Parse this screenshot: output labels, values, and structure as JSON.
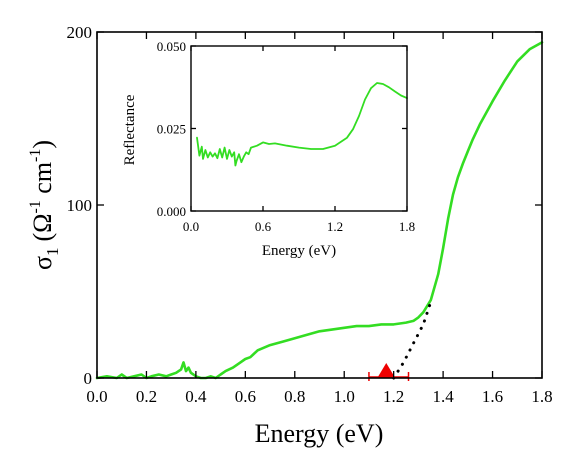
{
  "chart_data": [
    {
      "type": "line",
      "title": "",
      "xlabel": "Energy (eV)",
      "ylabel": {
        "main": "σ",
        "sub": "1",
        "unit": "(Ω",
        "exp1": "-1",
        "unit2": " cm",
        "exp2": "-1",
        "close": ")"
      },
      "xlim": [
        0.0,
        1.8
      ],
      "ylim": [
        0,
        200
      ],
      "xticks": [
        0.0,
        0.2,
        0.4,
        0.6,
        0.8,
        1.0,
        1.2,
        1.4,
        1.6,
        1.8
      ],
      "xtick_labels": [
        "0.0",
        "0.2",
        "0.4",
        "0.6",
        "0.8",
        "1.0",
        "1.2",
        "1.4",
        "1.6",
        "1.8"
      ],
      "yticks": [
        0,
        100,
        200
      ],
      "ytick_labels": [
        "0",
        "100",
        "200"
      ],
      "grid": false,
      "series": [
        {
          "color": "#33dd22",
          "style": "solid",
          "x": [
            0.0,
            0.04,
            0.08,
            0.1,
            0.12,
            0.15,
            0.18,
            0.2,
            0.22,
            0.25,
            0.28,
            0.3,
            0.32,
            0.34,
            0.35,
            0.36,
            0.37,
            0.38,
            0.39,
            0.4,
            0.42,
            0.44,
            0.46,
            0.48,
            0.5,
            0.52,
            0.55,
            0.58,
            0.6,
            0.62,
            0.65,
            0.7,
            0.75,
            0.8,
            0.85,
            0.9,
            0.95,
            1.0,
            1.05,
            1.1,
            1.15,
            1.2,
            1.25,
            1.28,
            1.3,
            1.32,
            1.35,
            1.38,
            1.4,
            1.42,
            1.44,
            1.46,
            1.48,
            1.5,
            1.52,
            1.55,
            1.6,
            1.65,
            1.7,
            1.75,
            1.8
          ],
          "y": [
            0,
            1,
            0,
            2,
            0,
            1,
            2,
            0,
            1,
            2,
            1,
            2,
            3,
            5,
            9,
            4,
            6,
            3,
            2,
            1,
            0,
            0,
            1,
            0,
            2,
            4,
            6,
            9,
            11,
            12,
            16,
            19,
            21,
            23,
            25,
            27,
            28,
            29,
            30,
            30,
            31,
            31,
            32,
            33,
            35,
            38,
            45,
            60,
            75,
            92,
            106,
            116,
            124,
            131,
            138,
            147,
            160,
            172,
            183,
            190,
            194
          ]
        },
        {
          "color": "#000000",
          "style": "dotted",
          "x": [
            1.2,
            1.24,
            1.28,
            1.32,
            1.35
          ],
          "y": [
            0,
            9,
            20,
            31,
            44
          ]
        }
      ],
      "markers": [
        {
          "shape": "triangle",
          "color": "#ee0000",
          "x": 1.17,
          "y": 0,
          "error_x": [
            1.1,
            1.26
          ]
        }
      ]
    },
    {
      "type": "line",
      "title": "",
      "xlabel": "Energy (eV)",
      "ylabel": "Reflectance",
      "xlim": [
        0.0,
        1.8
      ],
      "ylim": [
        0.0,
        0.05
      ],
      "xticks": [
        0.0,
        0.6,
        1.2,
        1.8
      ],
      "xtick_labels": [
        "0.0",
        "0.6",
        "1.2",
        "1.8"
      ],
      "yticks": [
        0.0,
        0.025,
        0.05
      ],
      "ytick_labels": [
        "0.000",
        "0.025",
        "0.050"
      ],
      "grid": false,
      "series": [
        {
          "color": "#33dd22",
          "style": "solid",
          "x": [
            0.05,
            0.07,
            0.09,
            0.1,
            0.12,
            0.14,
            0.16,
            0.18,
            0.2,
            0.22,
            0.24,
            0.26,
            0.28,
            0.3,
            0.32,
            0.34,
            0.36,
            0.37,
            0.38,
            0.4,
            0.42,
            0.44,
            0.46,
            0.48,
            0.5,
            0.55,
            0.6,
            0.65,
            0.7,
            0.8,
            0.9,
            1.0,
            1.1,
            1.2,
            1.3,
            1.35,
            1.4,
            1.45,
            1.5,
            1.55,
            1.6,
            1.65,
            1.7,
            1.75,
            1.8
          ],
          "y": [
            0.0222,
            0.0168,
            0.0195,
            0.0158,
            0.0185,
            0.0162,
            0.0178,
            0.0165,
            0.0175,
            0.016,
            0.0188,
            0.0162,
            0.0192,
            0.0158,
            0.0185,
            0.0165,
            0.0178,
            0.0138,
            0.0152,
            0.0172,
            0.0148,
            0.0165,
            0.0178,
            0.0172,
            0.0192,
            0.0198,
            0.0208,
            0.0203,
            0.0205,
            0.0198,
            0.0192,
            0.0188,
            0.0188,
            0.0198,
            0.0222,
            0.0248,
            0.0288,
            0.0338,
            0.0372,
            0.0388,
            0.0385,
            0.0375,
            0.0362,
            0.035,
            0.0342
          ]
        }
      ]
    }
  ]
}
